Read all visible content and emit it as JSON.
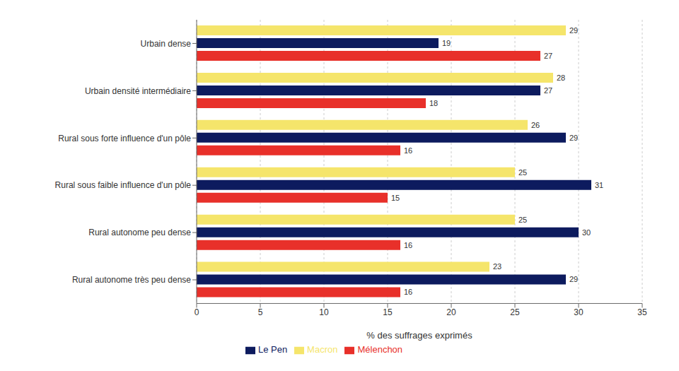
{
  "chart_data": {
    "type": "bar",
    "orientation": "horizontal",
    "categories": [
      "Urbain dense",
      "Urbain densité intermédiaire",
      "Rural sous forte influence d'un pôle",
      "Rural sous faible influence d'un pôle",
      "Rural autonome peu dense",
      "Rural autonome très peu dense"
    ],
    "series": [
      {
        "name": "Macron",
        "color": "#F5E56B",
        "values": [
          29,
          28,
          26,
          25,
          25,
          23
        ]
      },
      {
        "name": "Le Pen",
        "color": "#0D1B5E",
        "values": [
          19,
          27,
          29,
          31,
          30,
          29
        ]
      },
      {
        "name": "Mélenchon",
        "color": "#E8302A",
        "values": [
          27,
          18,
          16,
          15,
          16,
          16
        ]
      }
    ],
    "xlabel": "% des suffrages exprimés",
    "xlim": [
      0,
      35
    ],
    "xticks": [
      0,
      5,
      10,
      15,
      20,
      25,
      30,
      35
    ],
    "grid": true,
    "legend": "bottom",
    "data_labels": true
  }
}
